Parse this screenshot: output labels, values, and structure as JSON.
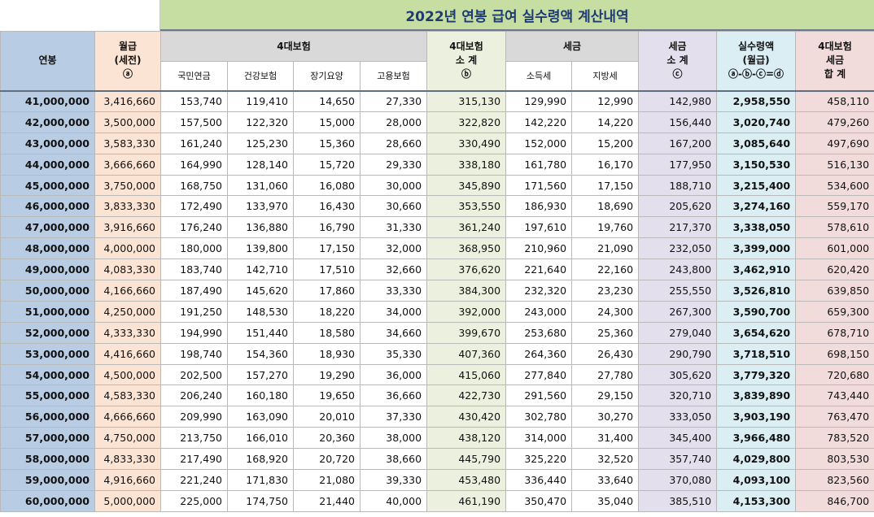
{
  "title": "2022년 연봉 급여 실수령액 계산내역",
  "headers": {
    "annual": "연봉",
    "monthly": [
      "월급",
      "(세전)",
      "ⓐ"
    ],
    "insurance_group": "4대보험",
    "pension": "국민연금",
    "health": "건강보험",
    "longterm_care": "장기요양",
    "employment": "고용보험",
    "insurance_subtotal": [
      "4대보험",
      "소 계",
      "ⓑ"
    ],
    "tax_group": "세금",
    "income_tax": "소득세",
    "local_tax": "지방세",
    "tax_subtotal": [
      "세금",
      "소 계",
      "ⓒ"
    ],
    "net": [
      "실수령액",
      "(월급)",
      "ⓐ-ⓑ-ⓒ=ⓓ"
    ],
    "total_deduction": [
      "4대보험",
      "세금",
      "합 계"
    ]
  },
  "rows": [
    [
      "41,000,000",
      "3,416,660",
      "153,740",
      "119,410",
      "14,650",
      "27,330",
      "315,130",
      "129,990",
      "12,990",
      "142,980",
      "2,958,550",
      "458,110"
    ],
    [
      "42,000,000",
      "3,500,000",
      "157,500",
      "122,320",
      "15,000",
      "28,000",
      "322,820",
      "142,220",
      "14,220",
      "156,440",
      "3,020,740",
      "479,260"
    ],
    [
      "43,000,000",
      "3,583,330",
      "161,240",
      "125,230",
      "15,360",
      "28,660",
      "330,490",
      "152,000",
      "15,200",
      "167,200",
      "3,085,640",
      "497,690"
    ],
    [
      "44,000,000",
      "3,666,660",
      "164,990",
      "128,140",
      "15,720",
      "29,330",
      "338,180",
      "161,780",
      "16,170",
      "177,950",
      "3,150,530",
      "516,130"
    ],
    [
      "45,000,000",
      "3,750,000",
      "168,750",
      "131,060",
      "16,080",
      "30,000",
      "345,890",
      "171,560",
      "17,150",
      "188,710",
      "3,215,400",
      "534,600"
    ],
    [
      "46,000,000",
      "3,833,330",
      "172,490",
      "133,970",
      "16,430",
      "30,660",
      "353,550",
      "186,930",
      "18,690",
      "205,620",
      "3,274,160",
      "559,170"
    ],
    [
      "47,000,000",
      "3,916,660",
      "176,240",
      "136,880",
      "16,790",
      "31,330",
      "361,240",
      "197,610",
      "19,760",
      "217,370",
      "3,338,050",
      "578,610"
    ],
    [
      "48,000,000",
      "4,000,000",
      "180,000",
      "139,800",
      "17,150",
      "32,000",
      "368,950",
      "210,960",
      "21,090",
      "232,050",
      "3,399,000",
      "601,000"
    ],
    [
      "49,000,000",
      "4,083,330",
      "183,740",
      "142,710",
      "17,510",
      "32,660",
      "376,620",
      "221,640",
      "22,160",
      "243,800",
      "3,462,910",
      "620,420"
    ],
    [
      "50,000,000",
      "4,166,660",
      "187,490",
      "145,620",
      "17,860",
      "33,330",
      "384,300",
      "232,320",
      "23,230",
      "255,550",
      "3,526,810",
      "639,850"
    ],
    [
      "51,000,000",
      "4,250,000",
      "191,250",
      "148,530",
      "18,220",
      "34,000",
      "392,000",
      "243,000",
      "24,300",
      "267,300",
      "3,590,700",
      "659,300"
    ],
    [
      "52,000,000",
      "4,333,330",
      "194,990",
      "151,440",
      "18,580",
      "34,660",
      "399,670",
      "253,680",
      "25,360",
      "279,040",
      "3,654,620",
      "678,710"
    ],
    [
      "53,000,000",
      "4,416,660",
      "198,740",
      "154,360",
      "18,930",
      "35,330",
      "407,360",
      "264,360",
      "26,430",
      "290,790",
      "3,718,510",
      "698,150"
    ],
    [
      "54,000,000",
      "4,500,000",
      "202,500",
      "157,270",
      "19,290",
      "36,000",
      "415,060",
      "277,840",
      "27,780",
      "305,620",
      "3,779,320",
      "720,680"
    ],
    [
      "55,000,000",
      "4,583,330",
      "206,240",
      "160,180",
      "19,650",
      "36,660",
      "422,730",
      "291,560",
      "29,150",
      "320,710",
      "3,839,890",
      "743,440"
    ],
    [
      "56,000,000",
      "4,666,660",
      "209,990",
      "163,090",
      "20,010",
      "37,330",
      "430,420",
      "302,780",
      "30,270",
      "333,050",
      "3,903,190",
      "763,470"
    ],
    [
      "57,000,000",
      "4,750,000",
      "213,750",
      "166,010",
      "20,360",
      "38,000",
      "438,120",
      "314,000",
      "31,400",
      "345,400",
      "3,966,480",
      "783,520"
    ],
    [
      "58,000,000",
      "4,833,330",
      "217,490",
      "168,920",
      "20,720",
      "38,660",
      "445,790",
      "325,220",
      "32,520",
      "357,740",
      "4,029,800",
      "803,530"
    ],
    [
      "59,000,000",
      "4,916,660",
      "221,240",
      "171,830",
      "21,080",
      "39,330",
      "453,480",
      "336,440",
      "33,640",
      "370,080",
      "4,093,100",
      "823,560"
    ],
    [
      "60,000,000",
      "5,000,000",
      "225,000",
      "174,750",
      "21,440",
      "40,000",
      "461,190",
      "350,470",
      "35,040",
      "385,510",
      "4,153,300",
      "846,700"
    ]
  ],
  "colors": {
    "title_bg": "#c7dea3",
    "title_text": "#1f3b73",
    "annual_bg": "#b8cce4",
    "monthly_bg": "#fce4d4",
    "insurance_subtotal_bg": "#ebf1de",
    "tax_subtotal_bg": "#e4dfec",
    "net_bg": "#daeef3",
    "total_bg": "#f2dcdb"
  }
}
